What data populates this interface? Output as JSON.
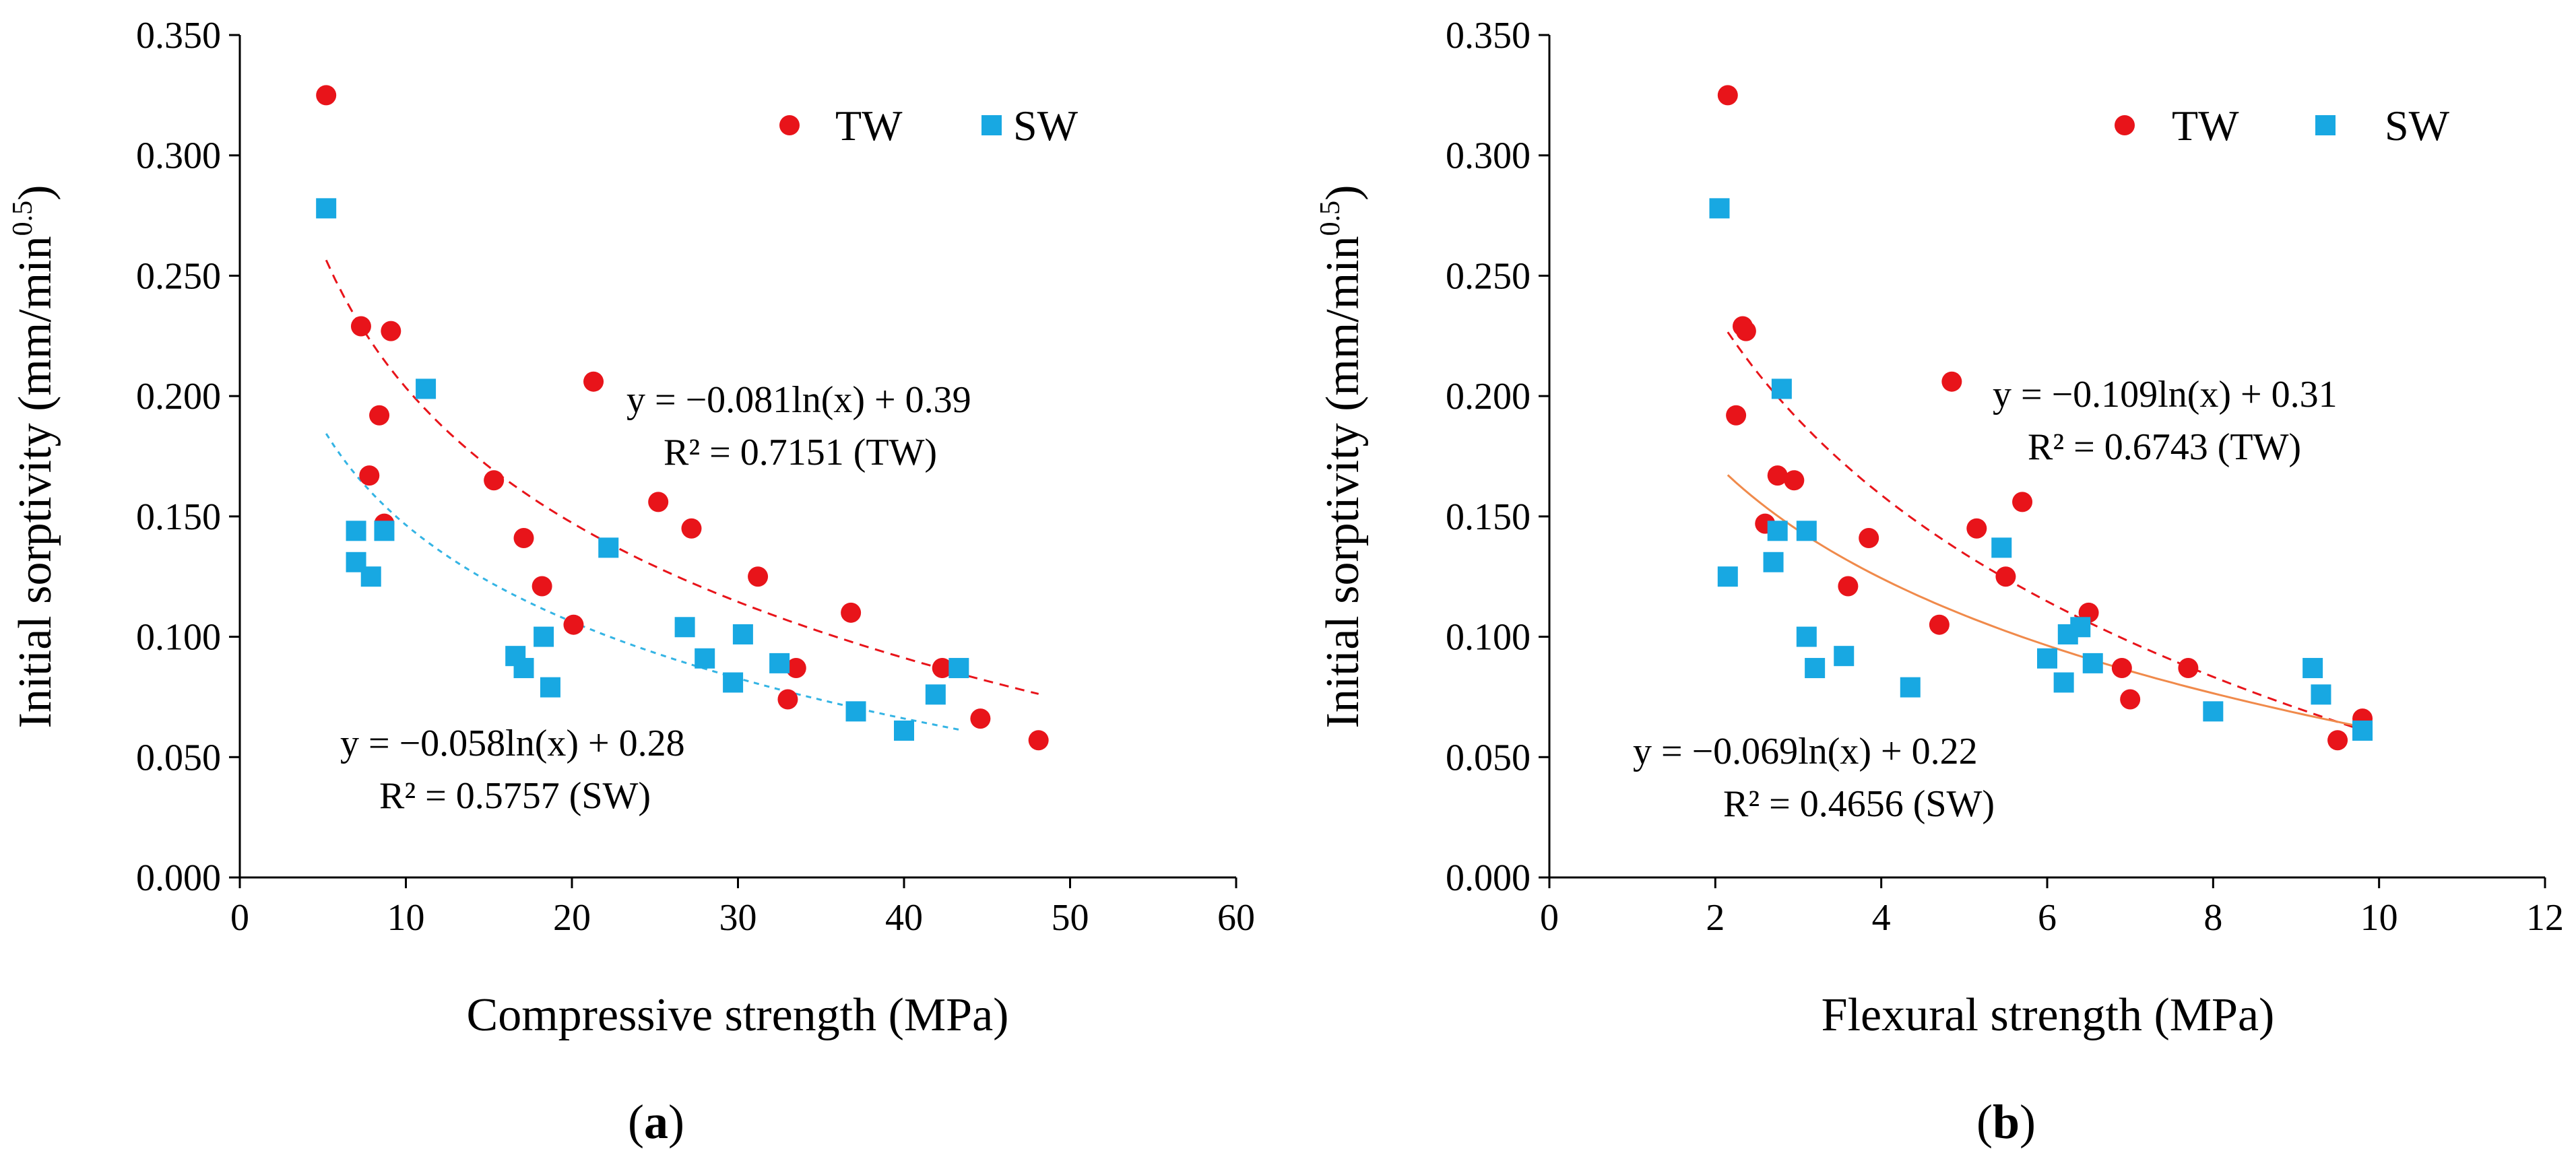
{
  "chart_data": [
    {
      "type": "scatter",
      "panel_label": "a",
      "xlabel": "Compressive strength (MPa)",
      "ylabel_main": "Initial sorptivity (mm/min",
      "ylabel_sup": "0.5",
      "ylabel_close": ")",
      "xlim": [
        0,
        60
      ],
      "ylim": [
        0,
        0.35
      ],
      "xticks": [
        "0",
        "10",
        "20",
        "30",
        "40",
        "50",
        "60"
      ],
      "yticks": [
        "0.000",
        "0.050",
        "0.100",
        "0.150",
        "0.200",
        "0.250",
        "0.300",
        "0.350"
      ],
      "legend": [
        {
          "name": "TW",
          "marker": "circle",
          "color": "#e8141a"
        },
        {
          "name": "SW",
          "marker": "square",
          "color": "#18a8e2"
        }
      ],
      "series": [
        {
          "name": "TW",
          "marker": "circle",
          "color": "#e8141a",
          "points": [
            [
              5.2,
              0.325
            ],
            [
              7.3,
              0.229
            ],
            [
              7.8,
              0.167
            ],
            [
              8.4,
              0.192
            ],
            [
              8.7,
              0.147
            ],
            [
              9.1,
              0.227
            ],
            [
              15.3,
              0.165
            ],
            [
              17.1,
              0.141
            ],
            [
              18.2,
              0.121
            ],
            [
              20.1,
              0.105
            ],
            [
              21.3,
              0.206
            ],
            [
              25.2,
              0.156
            ],
            [
              27.2,
              0.145
            ],
            [
              31.2,
              0.125
            ],
            [
              33.0,
              0.074
            ],
            [
              33.5,
              0.087
            ],
            [
              36.8,
              0.11
            ],
            [
              42.3,
              0.087
            ],
            [
              44.6,
              0.066
            ],
            [
              48.1,
              0.057
            ]
          ],
          "fit": {
            "a": -0.081,
            "b": 0.39,
            "x_range": [
              5.2,
              48.1
            ],
            "color": "#e8141a",
            "style": "dashed",
            "equation": "y = −0.081ln(x) + 0.39",
            "r2": "R² = 0.7151 (TW)"
          }
        },
        {
          "name": "SW",
          "marker": "square",
          "color": "#18a8e2",
          "points": [
            [
              5.2,
              0.278
            ],
            [
              7.0,
              0.131
            ],
            [
              7.0,
              0.144
            ],
            [
              7.9,
              0.125
            ],
            [
              8.7,
              0.144
            ],
            [
              11.2,
              0.203
            ],
            [
              16.6,
              0.092
            ],
            [
              17.1,
              0.087
            ],
            [
              18.3,
              0.1
            ],
            [
              18.7,
              0.079
            ],
            [
              22.2,
              0.137
            ],
            [
              26.8,
              0.104
            ],
            [
              28.0,
              0.091
            ],
            [
              29.7,
              0.081
            ],
            [
              30.3,
              0.101
            ],
            [
              32.5,
              0.089
            ],
            [
              37.1,
              0.069
            ],
            [
              40.0,
              0.061
            ],
            [
              41.9,
              0.076
            ],
            [
              43.3,
              0.087
            ]
          ],
          "fit": {
            "a": -0.058,
            "b": 0.28,
            "x_range": [
              5.2,
              43.3
            ],
            "color": "#34b4e4",
            "style": "dotted",
            "equation": "y = −0.058ln(x) + 0.28",
            "r2": "R² = 0.5757 (SW)"
          }
        }
      ]
    },
    {
      "type": "scatter",
      "panel_label": "b",
      "xlabel": "Flexural strength (MPa)",
      "ylabel_main": "Initial sorptivity (mm/min",
      "ylabel_sup": "0.5",
      "ylabel_close": ")",
      "xlim": [
        0,
        12
      ],
      "ylim": [
        0,
        0.35
      ],
      "xticks": [
        "0",
        "2",
        "4",
        "6",
        "8",
        "10",
        "12"
      ],
      "yticks": [
        "0.000",
        "0.050",
        "0.100",
        "0.150",
        "0.200",
        "0.250",
        "0.300",
        "0.350"
      ],
      "legend": [
        {
          "name": "TW",
          "marker": "circle",
          "color": "#e8141a"
        },
        {
          "name": "SW",
          "marker": "square",
          "color": "#18a8e2"
        }
      ],
      "series": [
        {
          "name": "TW",
          "marker": "circle",
          "color": "#e8141a",
          "points": [
            [
              2.15,
              0.325
            ],
            [
              2.25,
              0.192
            ],
            [
              2.33,
              0.229
            ],
            [
              2.37,
              0.227
            ],
            [
              2.6,
              0.147
            ],
            [
              2.75,
              0.167
            ],
            [
              2.95,
              0.165
            ],
            [
              3.6,
              0.121
            ],
            [
              3.85,
              0.141
            ],
            [
              4.7,
              0.105
            ],
            [
              4.85,
              0.206
            ],
            [
              5.15,
              0.145
            ],
            [
              5.5,
              0.125
            ],
            [
              5.7,
              0.156
            ],
            [
              6.5,
              0.11
            ],
            [
              6.9,
              0.087
            ],
            [
              7.0,
              0.074
            ],
            [
              7.7,
              0.087
            ],
            [
              9.5,
              0.057
            ],
            [
              9.8,
              0.066
            ]
          ],
          "fit": {
            "a": -0.109,
            "b": 0.31,
            "x_range": [
              2.15,
              9.8
            ],
            "color": "#e8141a",
            "style": "dashed",
            "equation": "y = −0.109ln(x) + 0.31",
            "r2": "R² = 0.6743 (TW)"
          }
        },
        {
          "name": "SW",
          "marker": "square",
          "color": "#18a8e2",
          "points": [
            [
              2.05,
              0.278
            ],
            [
              2.15,
              0.125
            ],
            [
              2.7,
              0.131
            ],
            [
              2.75,
              0.144
            ],
            [
              2.8,
              0.203
            ],
            [
              3.1,
              0.1
            ],
            [
              3.1,
              0.144
            ],
            [
              3.2,
              0.087
            ],
            [
              3.55,
              0.092
            ],
            [
              4.35,
              0.079
            ],
            [
              5.45,
              0.137
            ],
            [
              6.0,
              0.091
            ],
            [
              6.2,
              0.081
            ],
            [
              6.25,
              0.101
            ],
            [
              6.4,
              0.104
            ],
            [
              6.55,
              0.089
            ],
            [
              8.0,
              0.069
            ],
            [
              9.2,
              0.087
            ],
            [
              9.3,
              0.076
            ],
            [
              9.8,
              0.061
            ]
          ],
          "fit": {
            "a": -0.069,
            "b": 0.22,
            "x_range": [
              2.15,
              9.8
            ],
            "color": "#f08a4b",
            "style": "solid",
            "equation": "y = −0.069ln(x) + 0.22",
            "r2": "R² = 0.4656  (SW)"
          }
        }
      ]
    }
  ]
}
